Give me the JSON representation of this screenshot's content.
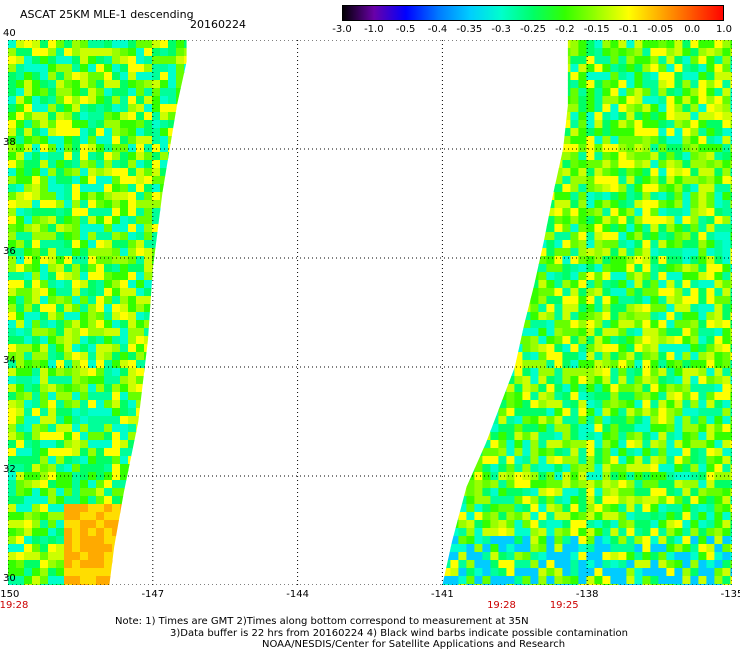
{
  "header": {
    "title": "ASCAT 25KM MLE-1 descending",
    "date": "20160224"
  },
  "colorbar": {
    "labels": [
      "-3.0",
      "-1.0",
      "-0.5",
      "-0.4",
      "-0.35",
      "-0.3",
      "-0.25",
      "-0.2",
      "-0.15",
      "-0.1",
      "-0.05",
      "0.0",
      "1.0"
    ],
    "colors": [
      "#000000",
      "#6a00a8",
      "#0000ff",
      "#0077ff",
      "#00ccff",
      "#00ffcc",
      "#00ff66",
      "#33ff00",
      "#99ff00",
      "#ffff00",
      "#ffaa00",
      "#ff5500",
      "#ff0000"
    ]
  },
  "map": {
    "lon_range": [
      -150,
      -135
    ],
    "lat_range": [
      30,
      40
    ],
    "lat_labels": [
      "40",
      "38",
      "36",
      "34",
      "32",
      "30"
    ],
    "lat_values": [
      40,
      38,
      36,
      34,
      32,
      30
    ],
    "lon_labels": [
      "-150",
      "-147",
      "-144",
      "-141",
      "-138",
      "-135"
    ],
    "lon_values": [
      -150,
      -147,
      -144,
      -141,
      -138,
      -135
    ],
    "grid": true,
    "swaths": [
      {
        "name": "west",
        "polygon": [
          [
            -150,
            40
          ],
          [
            -146.3,
            40
          ],
          [
            -146.3,
            39.6
          ],
          [
            -146.5,
            38.8
          ],
          [
            -146.8,
            37.2
          ],
          [
            -147.0,
            35.8
          ],
          [
            -147.1,
            34.5
          ],
          [
            -147.3,
            33.0
          ],
          [
            -147.6,
            31.7
          ],
          [
            -147.8,
            30.7
          ],
          [
            -147.9,
            30
          ],
          [
            -150,
            30
          ]
        ]
      },
      {
        "name": "east",
        "polygon": [
          [
            -138.4,
            40
          ],
          [
            -135,
            40
          ],
          [
            -135,
            30
          ],
          [
            -141,
            30
          ],
          [
            -140.8,
            30.8
          ],
          [
            -140.5,
            31.8
          ],
          [
            -140.1,
            32.6
          ],
          [
            -139.8,
            33.3
          ],
          [
            -139.5,
            34.0
          ],
          [
            -139.3,
            34.8
          ],
          [
            -139.1,
            35.5
          ],
          [
            -138.9,
            36.3
          ],
          [
            -138.7,
            37.2
          ],
          [
            -138.5,
            38.0
          ],
          [
            -138.4,
            38.8
          ]
        ]
      }
    ]
  },
  "time_labels": [
    {
      "text": "19:28",
      "lon": -150
    },
    {
      "text": "19:28",
      "lon": -139.9
    },
    {
      "text": "19:25",
      "lon": -138.6
    }
  ],
  "footer": {
    "line1": "Note: 1) Times are GMT 2)Times along bottom correspond to measurement at 35N",
    "line2": "3)Data buffer is 22 hrs from 20160224 4) Black wind barbs indicate possible contamination",
    "line3": "NOAA/NESDIS/Center for Satellite Applications and Research"
  }
}
